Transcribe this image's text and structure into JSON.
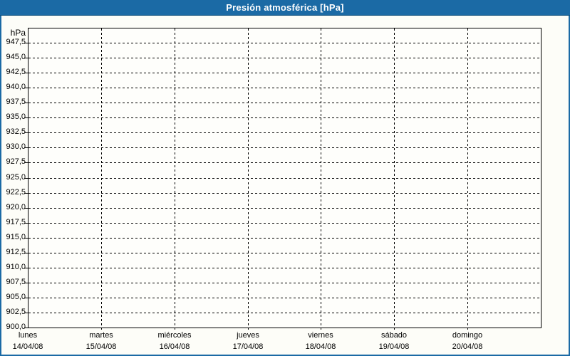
{
  "title": "Presión atmosférica [hPa]",
  "colors": {
    "header_bg": "#1B6AA5",
    "header_border_bottom": "#10507D",
    "header_text": "#FFFFFF",
    "frame_border": "#1B6AA5",
    "panel_background": "#FDFDF8",
    "plot_background": "#FEFEFB",
    "plot_border": "#000000",
    "grid": "#000000",
    "label_text": "#000000"
  },
  "chart_data": {
    "type": "line",
    "title": "Presión atmosférica [hPa]",
    "y_unit_label": "hPa",
    "ylim": [
      900,
      950
    ],
    "ytick_step": 2.5,
    "ytick_labels": [
      "947,5",
      "945,0",
      "942,5",
      "940,0",
      "937,5",
      "935,0",
      "932,5",
      "930,0",
      "927,5",
      "925,0",
      "922,5",
      "920,0",
      "917,5",
      "915,0",
      "912,5",
      "910,0",
      "907,5",
      "905,0",
      "902,5",
      "900,0"
    ],
    "x_categories": [
      {
        "day": "lunes",
        "date": "14/04/08"
      },
      {
        "day": "martes",
        "date": "15/04/08"
      },
      {
        "day": "miércoles",
        "date": "16/04/08"
      },
      {
        "day": "jueves",
        "date": "17/04/08"
      },
      {
        "day": "viernes",
        "date": "18/04/08"
      },
      {
        "day": "sábado",
        "date": "19/04/08"
      },
      {
        "day": "domingo",
        "date": "20/04/08"
      }
    ],
    "series": [],
    "grid": "dashed",
    "legend": "none"
  }
}
